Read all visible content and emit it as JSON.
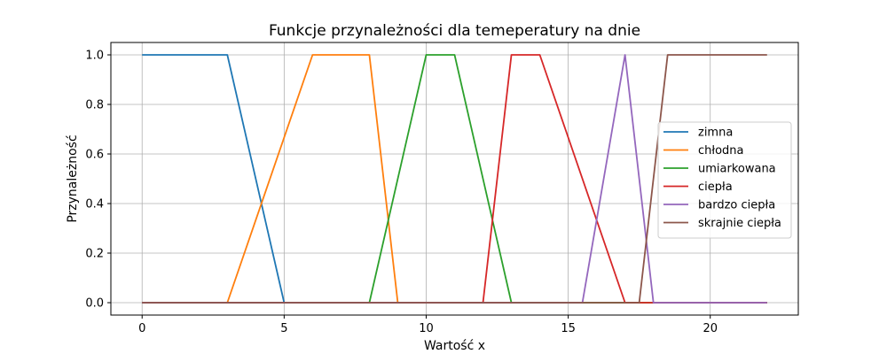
{
  "chart_data": {
    "type": "line",
    "title": "Funkcje przynależności dla temeperatury na dnie",
    "xlabel": "Wartość x",
    "ylabel": "Przynależność",
    "xlim": [
      -1.1,
      23.1
    ],
    "ylim": [
      -0.05,
      1.05
    ],
    "xticks": [
      0,
      5,
      10,
      15,
      20
    ],
    "yticks": [
      0.0,
      0.2,
      0.4,
      0.6,
      0.8,
      1.0
    ],
    "xtick_labels": [
      "0",
      "5",
      "10",
      "15",
      "20"
    ],
    "ytick_labels": [
      "0.0",
      "0.2",
      "0.4",
      "0.6",
      "0.8",
      "1.0"
    ],
    "grid": true,
    "legend_position": "center-right",
    "series": [
      {
        "name": "zimna",
        "color": "#1f77b4",
        "x": [
          0,
          3,
          5,
          22
        ],
        "y": [
          1,
          1,
          0,
          0
        ]
      },
      {
        "name": "chłodna",
        "color": "#ff7f0e",
        "x": [
          0,
          3,
          6,
          8,
          9,
          22
        ],
        "y": [
          0,
          0,
          1,
          1,
          0,
          0
        ]
      },
      {
        "name": "umiarkowana",
        "color": "#2ca02c",
        "x": [
          0,
          8,
          10,
          11,
          13,
          22
        ],
        "y": [
          0,
          0,
          1,
          1,
          0,
          0
        ]
      },
      {
        "name": "ciepła",
        "color": "#d62728",
        "x": [
          0,
          12,
          13,
          14,
          17,
          22
        ],
        "y": [
          0,
          0,
          1,
          1,
          0,
          0
        ]
      },
      {
        "name": "bardzo ciepła",
        "color": "#9467bd",
        "x": [
          0,
          15.5,
          17,
          18,
          22
        ],
        "y": [
          0,
          0,
          1,
          0,
          0
        ]
      },
      {
        "name": "skrajnie ciepła",
        "color": "#8c564b",
        "x": [
          0,
          17.5,
          18.5,
          22
        ],
        "y": [
          0,
          0,
          1,
          1
        ]
      }
    ]
  }
}
